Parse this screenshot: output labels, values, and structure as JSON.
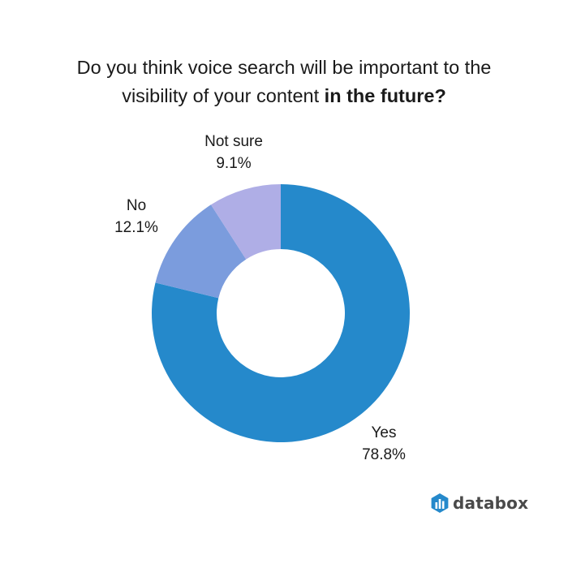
{
  "title": {
    "normal_line1": "Do you think voice search will be important to the",
    "normal_line2": "visibility of your content ",
    "bold": "in the future?"
  },
  "labels": {
    "yes_name": "Yes",
    "yes_value": "78.8%",
    "no_name": "No",
    "no_value": "12.1%",
    "notsure_name": "Not sure",
    "notsure_value": "9.1%"
  },
  "brand": {
    "name": "databox",
    "icon": "databox-logo-icon",
    "color": "#2589CB"
  },
  "colors": {
    "yes": "#2589CB",
    "no": "#7B9CDD",
    "not_sure": "#AFAEE6"
  },
  "chart_data": {
    "type": "pie",
    "subtype": "donut",
    "title": "Do you think voice search will be important to the visibility of your content in the future?",
    "categories": [
      "Yes",
      "No",
      "Not sure"
    ],
    "values": [
      78.8,
      12.1,
      9.1
    ],
    "unit": "%",
    "colors": [
      "#2589CB",
      "#7B9CDD",
      "#AFAEE6"
    ],
    "start_angle": "12 o'clock, clockwise",
    "legend": "none (direct labels)"
  }
}
